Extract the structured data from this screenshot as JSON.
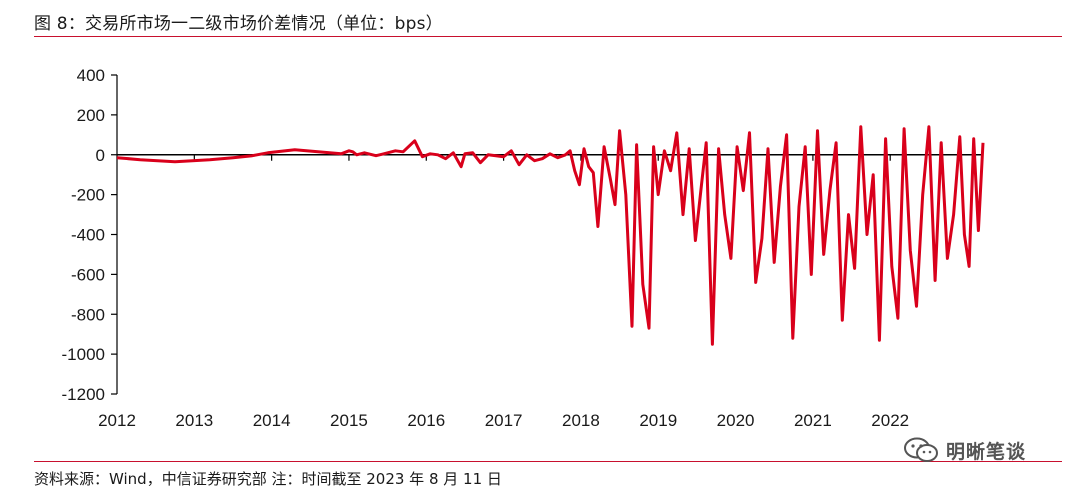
{
  "title": "图 8：交易所市场一二级市场价差情况（单位：bps）",
  "source": "资料来源：Wind，中信证券研究部 注：时间截至 2023 年 8 月 11 日",
  "watermark": "明晰笔谈",
  "colors": {
    "accent": "#c8102e",
    "series": "#d9001b",
    "axis": "#000000"
  },
  "chart_data": {
    "type": "line",
    "title": "",
    "xlabel": "",
    "ylabel": "",
    "xlim": [
      2012,
      2023.2
    ],
    "ylim": [
      -1200,
      400
    ],
    "yticks": [
      400,
      200,
      0,
      -200,
      -400,
      -600,
      -800,
      -1000,
      -1200
    ],
    "xticks": [
      "2012",
      "2013",
      "2014",
      "2015",
      "2016",
      "2017",
      "2018",
      "2019",
      "2020",
      "2021",
      "2022"
    ],
    "grid": false,
    "legend": "none",
    "series": [
      {
        "name": "",
        "x": [
          2012.0,
          2012.3,
          2012.75,
          2013.2,
          2013.5,
          2013.75,
          2013.95,
          2014.3,
          2014.6,
          2014.9,
          2015.0,
          2015.05,
          2015.1,
          2015.2,
          2015.35,
          2015.45,
          2015.6,
          2015.7,
          2015.85,
          2015.95,
          2016.05,
          2016.15,
          2016.25,
          2016.35,
          2016.45,
          2016.5,
          2016.6,
          2016.7,
          2016.8,
          2016.9,
          2017.0,
          2017.1,
          2017.2,
          2017.3,
          2017.4,
          2017.5,
          2017.6,
          2017.7,
          2017.8,
          2017.86,
          2017.92,
          2017.98,
          2018.04,
          2018.1,
          2018.16,
          2018.22,
          2018.3,
          2018.38,
          2018.44,
          2018.5,
          2018.58,
          2018.66,
          2018.72,
          2018.8,
          2018.88,
          2018.94,
          2019.0,
          2019.08,
          2019.16,
          2019.24,
          2019.32,
          2019.4,
          2019.48,
          2019.56,
          2019.62,
          2019.7,
          2019.78,
          2019.86,
          2019.94,
          2020.02,
          2020.1,
          2020.18,
          2020.26,
          2020.34,
          2020.42,
          2020.5,
          2020.58,
          2020.66,
          2020.74,
          2020.82,
          2020.9,
          2020.98,
          2021.06,
          2021.14,
          2021.22,
          2021.3,
          2021.38,
          2021.46,
          2021.54,
          2021.62,
          2021.7,
          2021.78,
          2021.86,
          2021.94,
          2022.02,
          2022.1,
          2022.18,
          2022.26,
          2022.34,
          2022.42,
          2022.5,
          2022.58,
          2022.66,
          2022.74,
          2022.82,
          2022.9,
          2022.96,
          2023.02,
          2023.08,
          2023.14,
          2023.2
        ],
        "y": [
          -15,
          -25,
          -35,
          -25,
          -15,
          -5,
          10,
          25,
          15,
          5,
          20,
          15,
          0,
          10,
          -5,
          5,
          20,
          15,
          70,
          -10,
          5,
          0,
          -20,
          10,
          -60,
          5,
          10,
          -40,
          0,
          -5,
          -10,
          20,
          -50,
          0,
          -30,
          -20,
          5,
          -15,
          0,
          20,
          -80,
          -150,
          30,
          -60,
          -90,
          -360,
          40,
          -120,
          -250,
          120,
          -200,
          -860,
          50,
          -650,
          -870,
          40,
          -200,
          20,
          -80,
          110,
          -300,
          30,
          -430,
          -150,
          60,
          -950,
          30,
          -300,
          -520,
          40,
          -180,
          110,
          -640,
          -420,
          30,
          -540,
          -160,
          100,
          -920,
          -260,
          40,
          -600,
          120,
          -500,
          -180,
          60,
          -830,
          -300,
          -570,
          140,
          -400,
          -100,
          -930,
          80,
          -560,
          -820,
          130,
          -480,
          -760,
          -200,
          140,
          -630,
          60,
          -520,
          -300,
          90,
          -400,
          -560,
          80,
          -380,
          60
        ]
      }
    ]
  }
}
